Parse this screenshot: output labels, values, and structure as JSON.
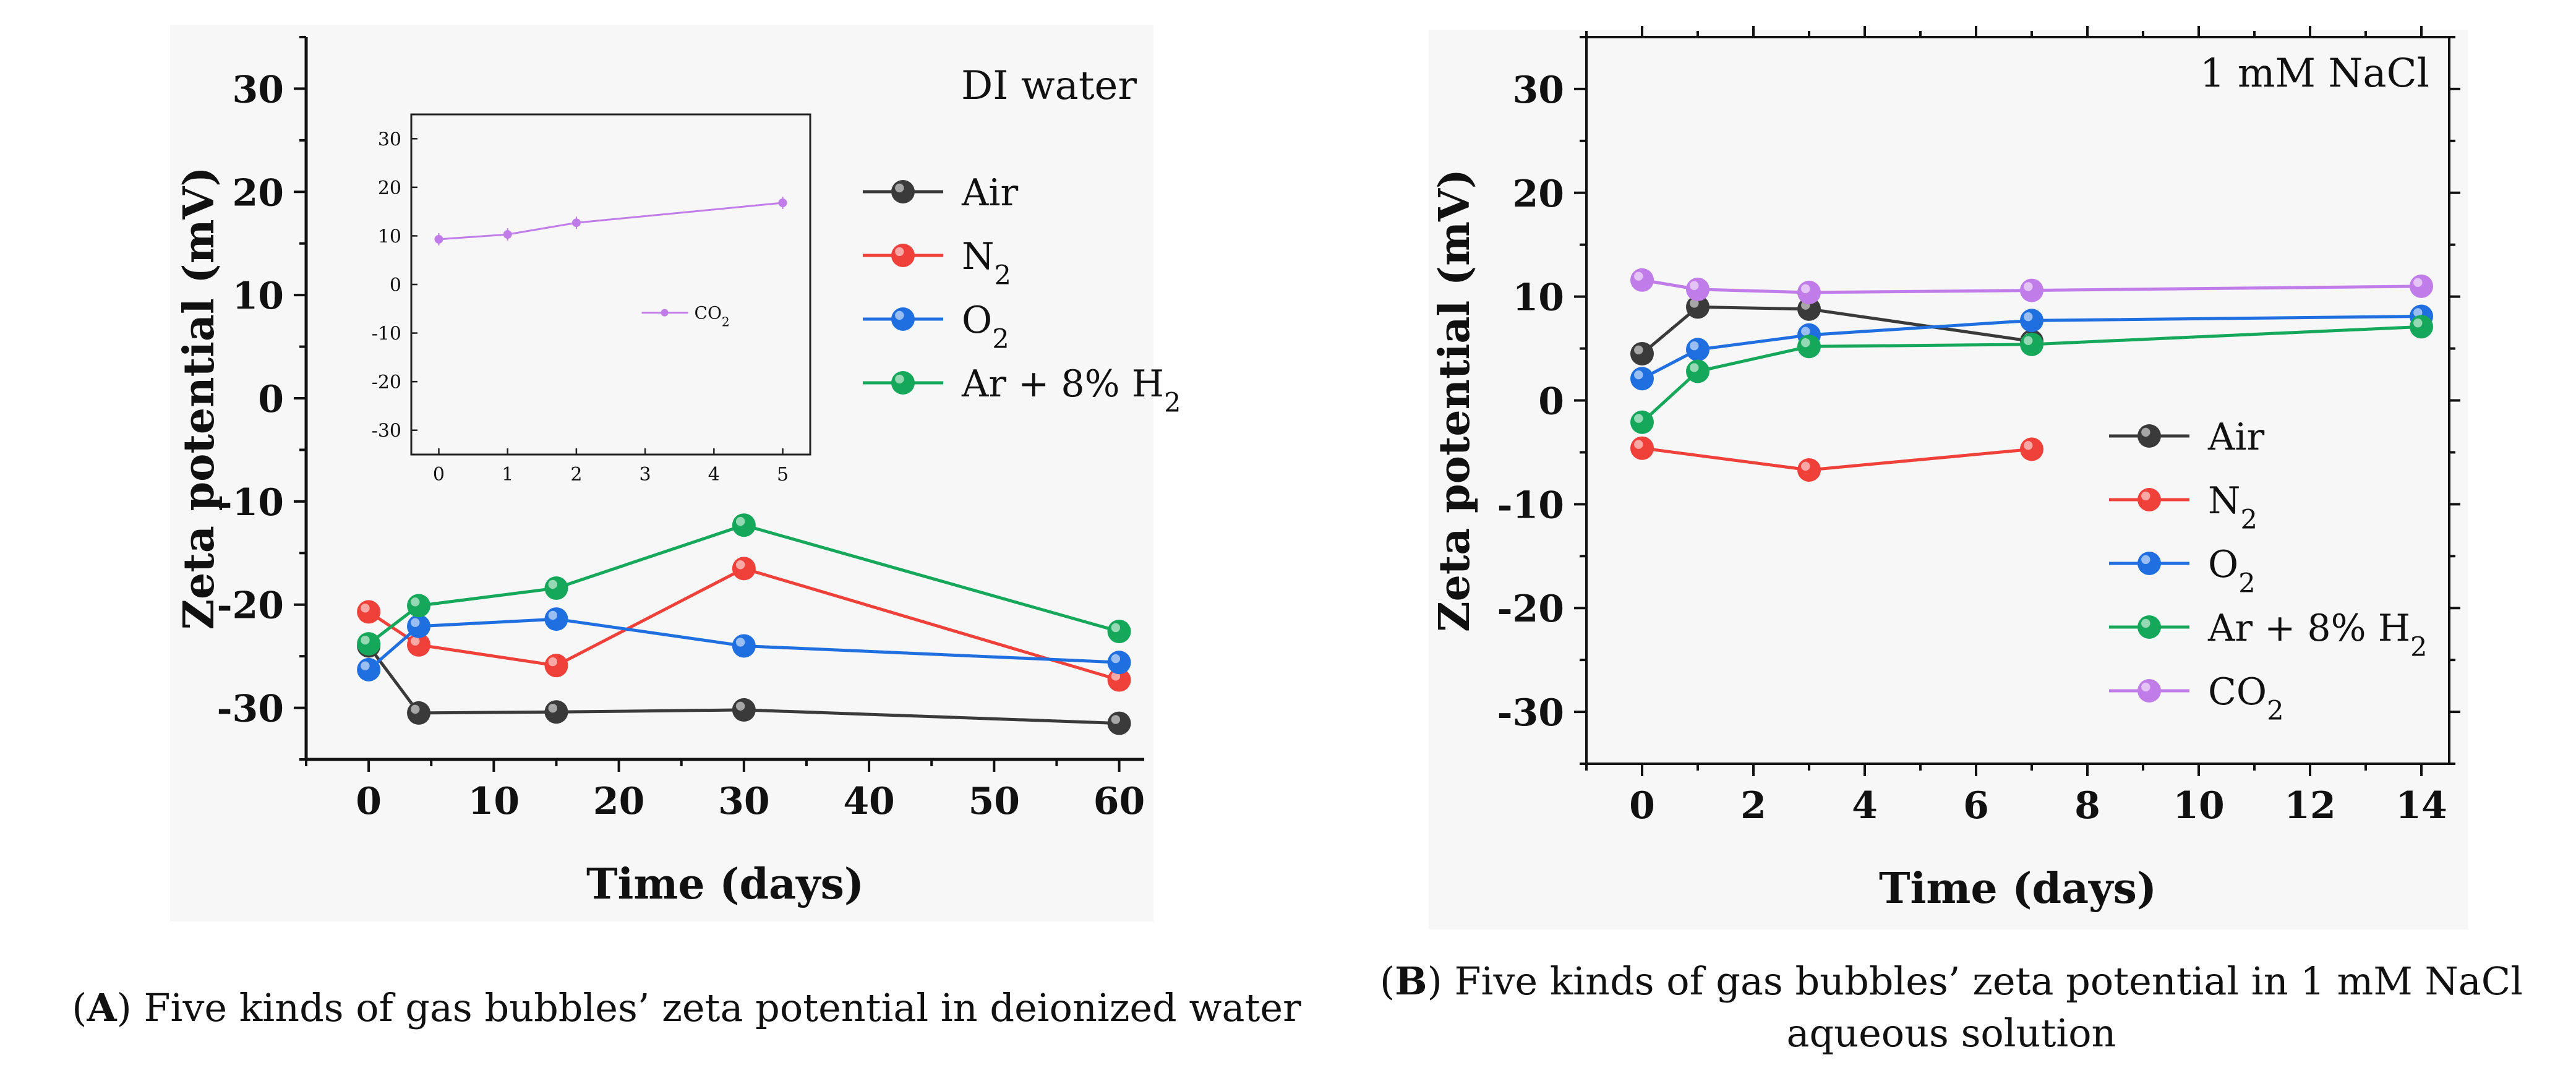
{
  "colors": {
    "Air": "#3a3a3a",
    "N2": "#f0403a",
    "O2": "#1f6fe0",
    "Ar + 8% H2": "#16a85a",
    "CO2": "#c07ce8"
  },
  "chart_data": [
    {
      "type": "line",
      "panel": "A",
      "title": "DI water",
      "xlabel": "Time (days)",
      "ylabel": "Zeta potential (mV)",
      "xlim": [
        -5,
        62
      ],
      "ylim": [
        -35,
        35
      ],
      "xticks": [
        0,
        10,
        20,
        30,
        40,
        50,
        60
      ],
      "yticks": [
        -30,
        -20,
        -10,
        0,
        10,
        20,
        30
      ],
      "legend_position": "right",
      "series": [
        {
          "name": "Air",
          "x": [
            0,
            4,
            15,
            30,
            60
          ],
          "values": [
            -24,
            -30.5,
            -30.4,
            -30.2,
            -31.5
          ]
        },
        {
          "name": "N2",
          "x": [
            0,
            4,
            15,
            30,
            60
          ],
          "values": [
            -20.7,
            -23.9,
            -25.9,
            -16.5,
            -27.3
          ]
        },
        {
          "name": "O2",
          "x": [
            0,
            4,
            15,
            30,
            60
          ],
          "values": [
            -26.3,
            -22.1,
            -21.4,
            -24.0,
            -25.6
          ]
        },
        {
          "name": "Ar + 8% H2",
          "x": [
            0,
            4,
            15,
            30,
            60
          ],
          "values": [
            -23.8,
            -20.1,
            -18.4,
            -12.3,
            -22.6
          ]
        }
      ],
      "inset": {
        "xlim": [
          -0.4,
          5.4
        ],
        "ylim": [
          -35,
          35
        ],
        "xticks": [
          0,
          1,
          2,
          3,
          4,
          5
        ],
        "yticks": [
          -30,
          -20,
          -10,
          0,
          10,
          20,
          30
        ],
        "series": [
          {
            "name": "CO2",
            "x": [
              0,
              1,
              2,
              5
            ],
            "values": [
              9.3,
              10.3,
              12.7,
              16.8
            ]
          }
        ]
      }
    },
    {
      "type": "line",
      "panel": "B",
      "title": "1 mM NaCl",
      "xlabel": "Time (days)",
      "ylabel": "Zeta potential (mV)",
      "xlim": [
        -1,
        14.5
      ],
      "ylim": [
        -35,
        35
      ],
      "xticks": [
        0,
        2,
        4,
        6,
        8,
        10,
        12,
        14
      ],
      "yticks": [
        -30,
        -20,
        -10,
        0,
        10,
        20,
        30
      ],
      "legend_position": "center-right",
      "series": [
        {
          "name": "Air",
          "x": [
            0,
            1,
            3,
            7
          ],
          "values": [
            4.5,
            9.0,
            8.8,
            5.7
          ]
        },
        {
          "name": "N2",
          "x": [
            0,
            3,
            7
          ],
          "values": [
            -4.6,
            -6.7,
            -4.7
          ]
        },
        {
          "name": "O2",
          "x": [
            0,
            1,
            3,
            7,
            14
          ],
          "values": [
            2.1,
            4.9,
            6.3,
            7.7,
            8.1
          ]
        },
        {
          "name": "Ar + 8% H2",
          "x": [
            0,
            1,
            3,
            7,
            14
          ],
          "values": [
            -2.1,
            2.8,
            5.2,
            5.4,
            7.1
          ]
        },
        {
          "name": "CO2",
          "x": [
            0,
            1,
            3,
            7,
            14
          ],
          "values": [
            11.6,
            10.7,
            10.4,
            10.6,
            11.0
          ]
        }
      ]
    }
  ],
  "captions": {
    "a_label": "A",
    "a_text": "Five kinds of gas bubbles’ zeta potential in deionized water",
    "b_label": "B",
    "b_text": "Five kinds of gas bubbles’ zeta potential in 1 mM NaCl aqueous solution"
  }
}
